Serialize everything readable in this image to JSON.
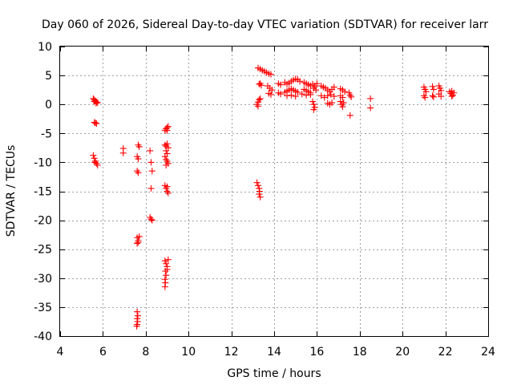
{
  "chart_data": {
    "type": "scatter",
    "title": "Day 060 of 2026, Sidereal Day-to-day VTEC variation (SDTVAR) for receiver larr",
    "xlabel": "GPS time / hours",
    "ylabel": "SDTVAR / TECUs",
    "xlim": [
      4,
      24
    ],
    "ylim": [
      -40,
      10
    ],
    "xticks": [
      4,
      6,
      8,
      10,
      12,
      14,
      16,
      18,
      20,
      22,
      24
    ],
    "yticks": [
      -40,
      -35,
      -30,
      -25,
      -20,
      -15,
      -10,
      -5,
      0,
      5,
      10
    ],
    "grid": true,
    "marker": "+",
    "series": [
      {
        "name": "SDTVAR",
        "color": "#ff0000",
        "points": [
          [
            5.55,
            1.0
          ],
          [
            5.6,
            0.8
          ],
          [
            5.65,
            0.6
          ],
          [
            5.7,
            0.4
          ],
          [
            5.75,
            0.3
          ],
          [
            5.6,
            0.5
          ],
          [
            5.68,
            0.2
          ],
          [
            5.6,
            -3.1
          ],
          [
            5.7,
            -3.3
          ],
          [
            5.65,
            -3.2
          ],
          [
            5.55,
            -8.8
          ],
          [
            5.6,
            -9.3
          ],
          [
            5.65,
            -9.8
          ],
          [
            5.7,
            -10.2
          ],
          [
            5.75,
            -10.5
          ],
          [
            5.62,
            -10.0
          ],
          [
            6.95,
            -7.6
          ],
          [
            6.95,
            -8.4
          ],
          [
            7.65,
            -7.0
          ],
          [
            7.7,
            -7.3
          ],
          [
            7.6,
            -9.0
          ],
          [
            7.65,
            -9.4
          ],
          [
            7.6,
            -11.5
          ],
          [
            7.65,
            -11.8
          ],
          [
            7.6,
            -23.0
          ],
          [
            7.65,
            -23.5
          ],
          [
            7.7,
            -22.8
          ],
          [
            7.6,
            -24.0
          ],
          [
            7.65,
            -23.8
          ],
          [
            7.6,
            -35.8
          ],
          [
            7.63,
            -36.5
          ],
          [
            7.6,
            -37.0
          ],
          [
            7.62,
            -37.5
          ],
          [
            7.6,
            -38.0
          ],
          [
            7.58,
            -38.3
          ],
          [
            8.2,
            -8.0
          ],
          [
            8.25,
            -10.0
          ],
          [
            8.3,
            -11.5
          ],
          [
            8.25,
            -14.5
          ],
          [
            8.2,
            -19.5
          ],
          [
            8.25,
            -19.8
          ],
          [
            8.3,
            -20.0
          ],
          [
            8.9,
            -4.5
          ],
          [
            8.95,
            -4.2
          ],
          [
            9.0,
            -4.0
          ],
          [
            9.05,
            -3.8
          ],
          [
            9.0,
            -4.5
          ],
          [
            8.9,
            -7.0
          ],
          [
            8.95,
            -7.2
          ],
          [
            9.0,
            -6.8
          ],
          [
            9.05,
            -7.5
          ],
          [
            8.95,
            -8.0
          ],
          [
            8.9,
            -9.0
          ],
          [
            8.95,
            -9.5
          ],
          [
            9.0,
            -9.8
          ],
          [
            9.05,
            -10.2
          ],
          [
            8.95,
            -10.5
          ],
          [
            9.0,
            -8.5
          ],
          [
            8.9,
            -14.0
          ],
          [
            8.95,
            -14.5
          ],
          [
            9.0,
            -15.0
          ],
          [
            9.05,
            -15.3
          ],
          [
            9.0,
            -14.2
          ],
          [
            8.9,
            -27.0
          ],
          [
            8.95,
            -27.5
          ],
          [
            9.0,
            -28.0
          ],
          [
            8.92,
            -28.8
          ],
          [
            8.95,
            -29.5
          ],
          [
            8.9,
            -30.2
          ],
          [
            8.92,
            -30.8
          ],
          [
            8.9,
            -31.5
          ],
          [
            9.05,
            -26.8
          ],
          [
            9.0,
            -28.5
          ],
          [
            13.2,
            -13.5
          ],
          [
            13.25,
            -14.0
          ],
          [
            13.3,
            -14.5
          ],
          [
            13.32,
            -15.0
          ],
          [
            13.3,
            -15.5
          ],
          [
            13.35,
            -16.0
          ],
          [
            13.2,
            0.0
          ],
          [
            13.25,
            0.4
          ],
          [
            13.3,
            0.8
          ],
          [
            13.35,
            1.0
          ],
          [
            13.25,
            -0.3
          ],
          [
            13.3,
            3.5
          ],
          [
            13.35,
            3.6
          ],
          [
            13.4,
            3.3
          ],
          [
            13.25,
            6.3
          ],
          [
            13.35,
            6.1
          ],
          [
            13.45,
            5.9
          ],
          [
            13.55,
            5.7
          ],
          [
            13.65,
            5.5
          ],
          [
            13.75,
            5.3
          ],
          [
            13.85,
            5.2
          ],
          [
            13.7,
            3.2
          ],
          [
            13.8,
            2.8
          ],
          [
            13.9,
            2.5
          ],
          [
            13.75,
            1.9
          ],
          [
            13.85,
            1.7
          ],
          [
            14.2,
            3.6
          ],
          [
            14.3,
            3.4
          ],
          [
            14.2,
            2.0
          ],
          [
            14.3,
            1.8
          ],
          [
            14.5,
            3.8
          ],
          [
            14.6,
            3.5
          ],
          [
            14.7,
            3.7
          ],
          [
            14.8,
            4.0
          ],
          [
            14.9,
            4.2
          ],
          [
            15.0,
            4.4
          ],
          [
            15.1,
            4.3
          ],
          [
            15.2,
            4.0
          ],
          [
            14.5,
            2.1
          ],
          [
            14.6,
            2.3
          ],
          [
            14.7,
            2.5
          ],
          [
            14.8,
            2.7
          ],
          [
            14.9,
            2.5
          ],
          [
            15.0,
            2.3
          ],
          [
            15.1,
            2.1
          ],
          [
            14.6,
            1.5
          ],
          [
            14.8,
            1.6
          ],
          [
            15.0,
            1.4
          ],
          [
            15.4,
            3.8
          ],
          [
            15.5,
            3.6
          ],
          [
            15.6,
            3.4
          ],
          [
            15.7,
            3.2
          ],
          [
            15.4,
            2.6
          ],
          [
            15.5,
            2.4
          ],
          [
            15.6,
            2.2
          ],
          [
            15.7,
            2.0
          ],
          [
            15.3,
            1.8
          ],
          [
            15.5,
            1.6
          ],
          [
            15.7,
            1.7
          ],
          [
            15.8,
            3.5
          ],
          [
            15.9,
            3.2
          ],
          [
            16.0,
            3.6
          ],
          [
            15.85,
            2.8
          ],
          [
            15.95,
            2.5
          ],
          [
            15.8,
            0.5
          ],
          [
            15.85,
            0.0
          ],
          [
            15.9,
            -0.5
          ],
          [
            15.85,
            -0.9
          ],
          [
            16.2,
            3.2
          ],
          [
            16.3,
            3.0
          ],
          [
            16.4,
            2.8
          ],
          [
            16.5,
            2.5
          ],
          [
            16.6,
            2.2
          ],
          [
            16.7,
            2.6
          ],
          [
            16.8,
            3.0
          ],
          [
            16.2,
            1.5
          ],
          [
            16.35,
            1.2
          ],
          [
            16.5,
            1.5
          ],
          [
            16.65,
            1.7
          ],
          [
            16.8,
            1.4
          ],
          [
            16.5,
            0.2
          ],
          [
            16.6,
            0.0
          ],
          [
            16.7,
            0.3
          ],
          [
            17.1,
            2.7
          ],
          [
            17.2,
            2.5
          ],
          [
            17.3,
            2.2
          ],
          [
            17.1,
            1.5
          ],
          [
            17.2,
            1.2
          ],
          [
            17.1,
            0.5
          ],
          [
            17.15,
            0.0
          ],
          [
            17.2,
            -0.4
          ],
          [
            17.25,
            0.3
          ],
          [
            17.5,
            2.0
          ],
          [
            17.55,
            1.6
          ],
          [
            17.6,
            1.3
          ],
          [
            17.55,
            -1.9
          ],
          [
            18.5,
            1.0
          ],
          [
            18.5,
            -0.6
          ],
          [
            21.0,
            3.0
          ],
          [
            21.05,
            2.6
          ],
          [
            21.1,
            2.2
          ],
          [
            21.0,
            1.5
          ],
          [
            21.05,
            1.2
          ],
          [
            21.4,
            3.1
          ],
          [
            21.45,
            2.6
          ],
          [
            21.4,
            1.5
          ],
          [
            21.45,
            1.3
          ],
          [
            21.7,
            3.2
          ],
          [
            21.75,
            2.8
          ],
          [
            21.8,
            2.4
          ],
          [
            21.7,
            1.8
          ],
          [
            21.8,
            1.4
          ],
          [
            22.2,
            2.2
          ],
          [
            22.25,
            1.9
          ],
          [
            22.3,
            2.3
          ],
          [
            22.35,
            1.6
          ],
          [
            22.4,
            2.0
          ],
          [
            22.3,
            1.4
          ]
        ]
      }
    ]
  }
}
